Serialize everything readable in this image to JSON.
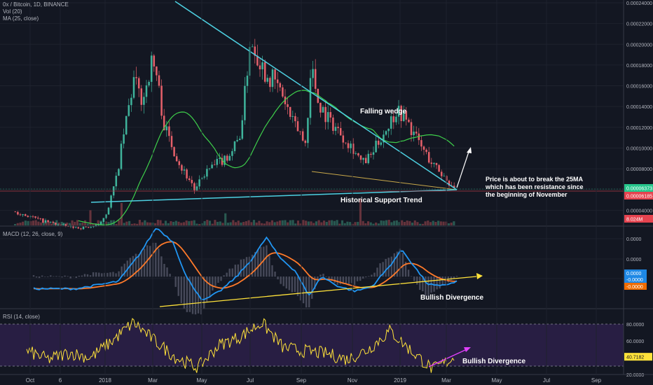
{
  "header": {
    "symbol_line": "0x / Bitcoin, 1D, BINANCE",
    "vol_line": "Vol (20)",
    "ma_line": "MA (25, close)",
    "macd_line": "MACD (12, 26, close, 9)",
    "rsi_line": "RSI (14, close)"
  },
  "annotations": {
    "falling_wedge": "Falling wedge",
    "historical_support": "Historical Support Trend",
    "price_note_1": "Price is about to break the 25MA",
    "price_note_2": "which has been resistance since",
    "price_note_3": "the beginning of November",
    "macd_divergence": "Bullish Divergence",
    "rsi_divergence": "Bullish Divergence"
  },
  "colors": {
    "background": "#131722",
    "candle_up": "#3fb39b",
    "candle_down": "#e5606a",
    "ma": "#3ecf4b",
    "wedge_line": "#4dd0e1",
    "support_line": "#4dd0e1",
    "macd_line": "#2196f3",
    "signal_line": "#ff7a2a",
    "trend_yellow": "#ffe23a",
    "rsi_line": "#ffe23a",
    "rsi_band": "#2b1f47",
    "rsi_divergence": "#e040fb",
    "price_badge": "#26c68c",
    "ma_badge": "#e5434f"
  },
  "chart_data": [
    {
      "type": "candlestick",
      "title": "0x / Bitcoin, 1D, BINANCE",
      "x_ticks": [
        "Oct",
        "6",
        "2018",
        "Mar",
        "May",
        "Jul",
        "Sep",
        "Nov",
        "2019",
        "Mar",
        "May",
        "Jul",
        "Sep"
      ],
      "y_ticks": [
        "0.00024000",
        "0.00022000",
        "0.00020000",
        "0.00018000",
        "0.00016000",
        "0.00014000",
        "0.00012000",
        "0.00010000",
        "0.00008000",
        "0.00006000",
        "0.00004000"
      ],
      "ylim": [
        2e-05,
        0.00024
      ],
      "price_path": [
        {
          "t": 0,
          "v": 3.88e-05
        },
        {
          "t": 0.03,
          "v": 3.45e-05
        },
        {
          "t": 0.06,
          "v": 3e-05
        },
        {
          "t": 0.09,
          "v": 2.7e-05
        },
        {
          "t": 0.12,
          "v": 2.4e-05
        },
        {
          "t": 0.15,
          "v": 2.3e-05
        },
        {
          "t": 0.19,
          "v": 2.5e-05
        },
        {
          "t": 0.21,
          "v": 4e-05
        },
        {
          "t": 0.23,
          "v": 7e-05
        },
        {
          "t": 0.25,
          "v": 0.00012
        },
        {
          "t": 0.27,
          "v": 0.000165
        },
        {
          "t": 0.29,
          "v": 0.000145
        },
        {
          "t": 0.31,
          "v": 0.000182
        },
        {
          "t": 0.32,
          "v": 0.000175
        },
        {
          "t": 0.34,
          "v": 0.00012
        },
        {
          "t": 0.36,
          "v": 0.0001
        },
        {
          "t": 0.38,
          "v": 8e-05
        },
        {
          "t": 0.4,
          "v": 6.8e-05
        },
        {
          "t": 0.41,
          "v": 5.8e-05
        },
        {
          "t": 0.43,
          "v": 7.5e-05
        },
        {
          "t": 0.45,
          "v": 8.2e-05
        },
        {
          "t": 0.47,
          "v": 8.8e-05
        },
        {
          "t": 0.49,
          "v": 9.5e-05
        },
        {
          "t": 0.51,
          "v": 0.00011
        },
        {
          "t": 0.52,
          "v": 0.000138
        },
        {
          "t": 0.535,
          "v": 0.000205
        },
        {
          "t": 0.55,
          "v": 0.000192
        },
        {
          "t": 0.57,
          "v": 0.000172
        },
        {
          "t": 0.59,
          "v": 0.000165
        },
        {
          "t": 0.61,
          "v": 0.00015
        },
        {
          "t": 0.63,
          "v": 0.000125
        },
        {
          "t": 0.65,
          "v": 0.000115
        },
        {
          "t": 0.66,
          "v": 0.0001
        },
        {
          "t": 0.675,
          "v": 0.00018
        },
        {
          "t": 0.69,
          "v": 0.000145
        },
        {
          "t": 0.71,
          "v": 0.00013
        },
        {
          "t": 0.73,
          "v": 0.00012
        },
        {
          "t": 0.75,
          "v": 0.00011
        },
        {
          "t": 0.77,
          "v": 0.0001
        },
        {
          "t": 0.79,
          "v": 8.5e-05
        },
        {
          "t": 0.81,
          "v": 9.2e-05
        },
        {
          "t": 0.83,
          "v": 0.000108
        },
        {
          "t": 0.85,
          "v": 0.000122
        },
        {
          "t": 0.87,
          "v": 0.000138
        },
        {
          "t": 0.89,
          "v": 0.000128
        },
        {
          "t": 0.91,
          "v": 0.000112
        },
        {
          "t": 0.93,
          "v": 9.8e-05
        },
        {
          "t": 0.95,
          "v": 8.5e-05
        },
        {
          "t": 0.97,
          "v": 7.6e-05
        },
        {
          "t": 0.985,
          "v": 6.8e-05
        },
        {
          "t": 1.0,
          "v": 6.37e-05
        }
      ],
      "ma_period": 25,
      "last_price": "0.00006373",
      "ma_value": "0.00006185",
      "volume_value": "8.024M"
    },
    {
      "type": "line",
      "title": "MACD (12, 26, close, 9)",
      "y_ticks": [
        "0.0000",
        "0.0000",
        "0.0000"
      ],
      "badges": [
        "0.0000",
        "-0.0000",
        "-0.0000"
      ],
      "macd_path": [
        {
          "t": 0,
          "v": -0.25
        },
        {
          "t": 0.1,
          "v": -0.25
        },
        {
          "t": 0.2,
          "v": -0.1
        },
        {
          "t": 0.25,
          "v": 0.45
        },
        {
          "t": 0.29,
          "v": 1.0
        },
        {
          "t": 0.33,
          "v": 0.7
        },
        {
          "t": 0.36,
          "v": 0.0
        },
        {
          "t": 0.4,
          "v": -0.5
        },
        {
          "t": 0.44,
          "v": -0.3
        },
        {
          "t": 0.48,
          "v": 0.0
        },
        {
          "t": 0.52,
          "v": 0.4
        },
        {
          "t": 0.55,
          "v": 0.8
        },
        {
          "t": 0.58,
          "v": 0.4
        },
        {
          "t": 0.62,
          "v": 0.1
        },
        {
          "t": 0.65,
          "v": -0.4
        },
        {
          "t": 0.68,
          "v": 0.0
        },
        {
          "t": 0.72,
          "v": -0.2
        },
        {
          "t": 0.76,
          "v": -0.3
        },
        {
          "t": 0.8,
          "v": -0.2
        },
        {
          "t": 0.84,
          "v": 0.2
        },
        {
          "t": 0.87,
          "v": 0.55
        },
        {
          "t": 0.9,
          "v": 0.2
        },
        {
          "t": 0.93,
          "v": -0.15
        },
        {
          "t": 0.96,
          "v": -0.2
        },
        {
          "t": 1.0,
          "v": -0.1
        }
      ]
    },
    {
      "type": "line",
      "title": "RSI (14, close)",
      "y_ticks": [
        "80.0000",
        "60.0000",
        "40.0000",
        "20.0000"
      ],
      "ylim": [
        20,
        95
      ],
      "last_value": "40.7182",
      "rsi_path": [
        {
          "t": 0,
          "v": 48
        },
        {
          "t": 0.05,
          "v": 38
        },
        {
          "t": 0.1,
          "v": 46
        },
        {
          "t": 0.15,
          "v": 40
        },
        {
          "t": 0.2,
          "v": 60
        },
        {
          "t": 0.25,
          "v": 82
        },
        {
          "t": 0.3,
          "v": 60
        },
        {
          "t": 0.35,
          "v": 40
        },
        {
          "t": 0.4,
          "v": 28
        },
        {
          "t": 0.45,
          "v": 55
        },
        {
          "t": 0.5,
          "v": 65
        },
        {
          "t": 0.55,
          "v": 82
        },
        {
          "t": 0.6,
          "v": 52
        },
        {
          "t": 0.65,
          "v": 48
        },
        {
          "t": 0.7,
          "v": 45
        },
        {
          "t": 0.75,
          "v": 38
        },
        {
          "t": 0.8,
          "v": 50
        },
        {
          "t": 0.85,
          "v": 72
        },
        {
          "t": 0.9,
          "v": 48
        },
        {
          "t": 0.95,
          "v": 26
        },
        {
          "t": 1.0,
          "v": 40
        }
      ]
    }
  ]
}
